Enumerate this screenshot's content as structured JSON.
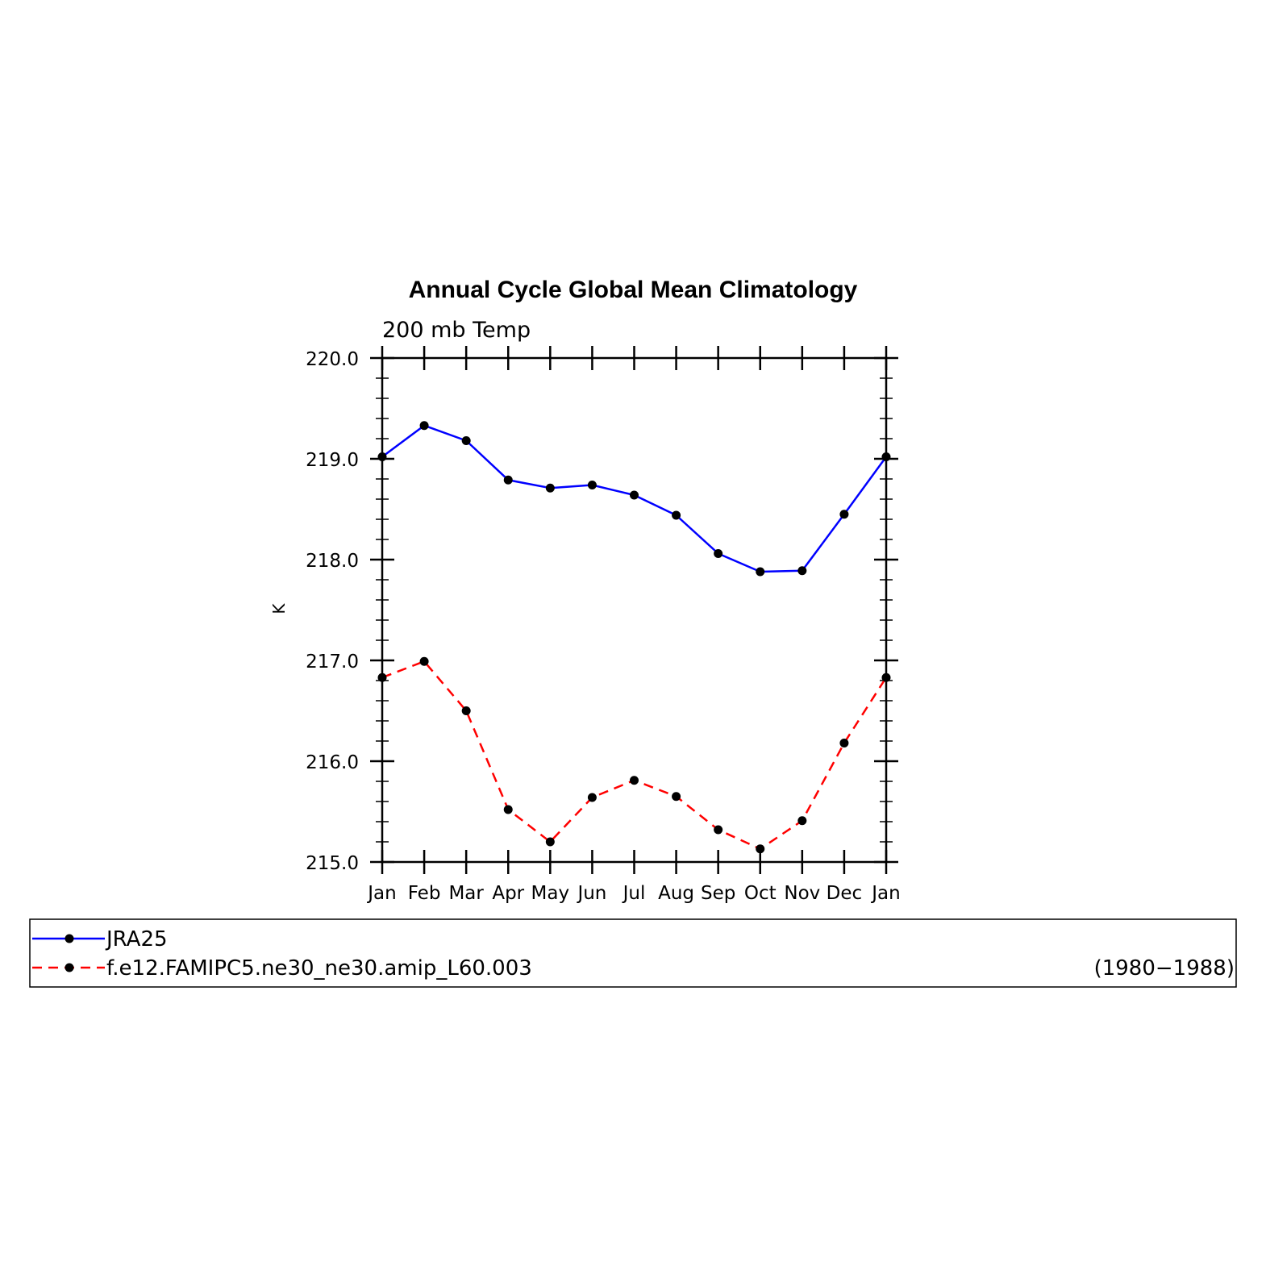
{
  "chart_data": {
    "type": "line",
    "title": "Annual Cycle Global Mean Climatology",
    "subtitle": "200 mb Temp",
    "xlabel": "",
    "ylabel": "K",
    "categories": [
      "Jan",
      "Feb",
      "Mar",
      "Apr",
      "May",
      "Jun",
      "Jul",
      "Aug",
      "Sep",
      "Oct",
      "Nov",
      "Dec",
      "Jan"
    ],
    "ylim": [
      215.0,
      220.0
    ],
    "yticks": [
      "215.0",
      "216.0",
      "217.0",
      "218.0",
      "219.0",
      "220.0"
    ],
    "grid": false,
    "legend_position": "bottom",
    "legend_note": "(1980−1988)",
    "series": [
      {
        "name": "JRA25",
        "color": "#0000ff",
        "dash": "solid",
        "marker": "filled-circle",
        "values": [
          219.02,
          219.33,
          219.18,
          218.79,
          218.71,
          218.74,
          218.64,
          218.44,
          218.06,
          217.88,
          217.89,
          218.45,
          219.02
        ]
      },
      {
        "name": "f.e12.FAMIPC5.ne30_ne30.amip_L60.003",
        "color": "#ff0000",
        "dash": "dashed",
        "marker": "filled-circle",
        "values": [
          216.83,
          216.99,
          216.5,
          215.52,
          215.2,
          215.64,
          215.81,
          215.65,
          215.32,
          215.13,
          215.41,
          216.18,
          216.83
        ]
      }
    ]
  }
}
